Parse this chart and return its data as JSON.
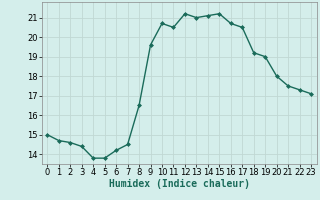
{
  "title": "",
  "xlabel": "Humidex (Indice chaleur)",
  "x": [
    0,
    1,
    2,
    3,
    4,
    5,
    6,
    7,
    8,
    9,
    10,
    11,
    12,
    13,
    14,
    15,
    16,
    17,
    18,
    19,
    20,
    21,
    22,
    23
  ],
  "y": [
    15.0,
    14.7,
    14.6,
    14.4,
    13.8,
    13.8,
    14.2,
    14.5,
    16.5,
    19.6,
    20.7,
    20.5,
    21.2,
    21.0,
    21.1,
    21.2,
    20.7,
    20.5,
    19.2,
    19.0,
    18.0,
    17.5,
    17.3,
    17.1
  ],
  "line_color": "#1a6b5a",
  "marker": "D",
  "marker_size": 2.0,
  "marker_linewidth": 0.5,
  "line_width": 1.0,
  "ylim": [
    13.5,
    21.8
  ],
  "yticks": [
    14,
    15,
    16,
    17,
    18,
    19,
    20,
    21
  ],
  "xlim": [
    -0.5,
    23.5
  ],
  "xticks": [
    0,
    1,
    2,
    3,
    4,
    5,
    6,
    7,
    8,
    9,
    10,
    11,
    12,
    13,
    14,
    15,
    16,
    17,
    18,
    19,
    20,
    21,
    22,
    23
  ],
  "bg_color": "#d4eeeb",
  "grid_color": "#c0d8d4",
  "label_fontsize": 7.0,
  "tick_fontsize": 6.0,
  "spine_color": "#888888"
}
